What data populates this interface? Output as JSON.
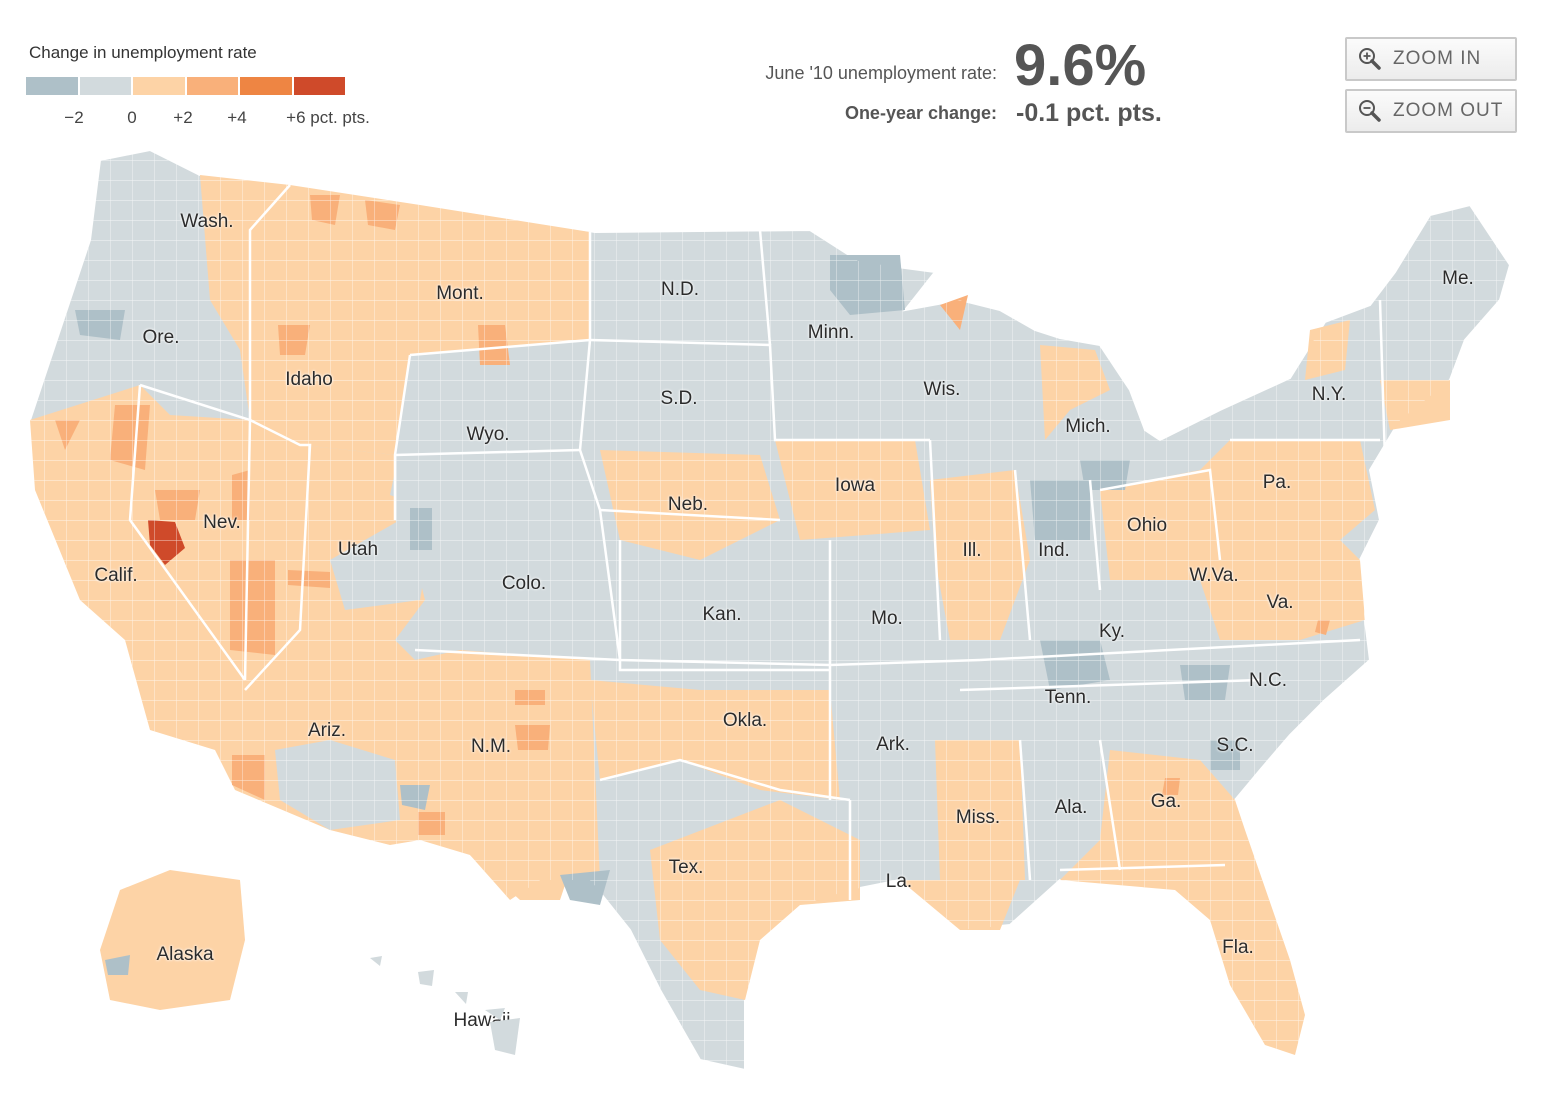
{
  "legend": {
    "title": "Change in unemployment rate",
    "colors": [
      "#aec0c8",
      "#d2dadd",
      "#fdd3a6",
      "#f9b07a",
      "#ee8543",
      "#cf4a2a"
    ],
    "ticks": [
      "−2",
      "0",
      "+2",
      "+4",
      "+6 pct. pts."
    ]
  },
  "stats": {
    "rate_label": "June '10 unemployment rate:",
    "rate_value": "9.6%",
    "change_label": "One-year change:",
    "change_value": "-0.1 pct. pts."
  },
  "zoom": {
    "zoom_in_label": "ZOOM IN",
    "zoom_in_icon": "zoom-in-magnifier-icon",
    "zoom_out_label": "ZOOM OUT",
    "zoom_out_icon": "zoom-out-magnifier-icon"
  },
  "map": {
    "colors": {
      "decrease": "#d2dadd",
      "strong_decrease": "#aec0c8",
      "increase": "#fdd3a6",
      "larger_increase": "#f9b07a",
      "high_increase": "#ee8543",
      "highest_increase": "#cf4a2a",
      "border": "#ffffff"
    },
    "state_labels": [
      "Wash.",
      "Ore.",
      "Calif.",
      "Idaho",
      "Nev.",
      "Mont.",
      "Wyo.",
      "Utah",
      "Ariz.",
      "Colo.",
      "N.M.",
      "N.D.",
      "S.D.",
      "Neb.",
      "Kan.",
      "Okla.",
      "Tex.",
      "Minn.",
      "Iowa",
      "Mo.",
      "Ark.",
      "La.",
      "Wis.",
      "Ill.",
      "Mich.",
      "Ind.",
      "Ohio",
      "Ky.",
      "Tenn.",
      "Miss.",
      "Ala.",
      "Ga.",
      "Fla.",
      "S.C.",
      "N.C.",
      "Va.",
      "W.Va.",
      "Pa.",
      "N.Y.",
      "Me.",
      "Alaska",
      "Hawaii"
    ]
  }
}
